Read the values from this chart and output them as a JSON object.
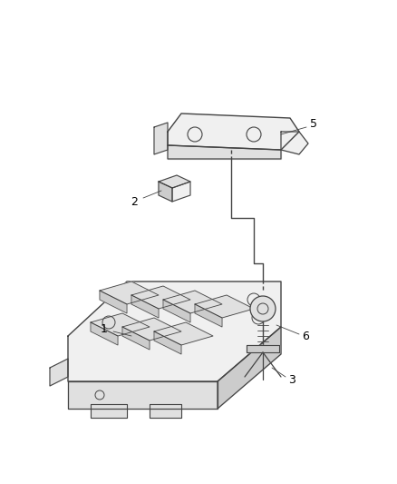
{
  "fig_width": 4.38,
  "fig_height": 5.33,
  "dpi": 100,
  "bg_color": "#ffffff",
  "lc": "#666666",
  "dc": "#444444",
  "fc_light": "#f0f0f0",
  "fc_mid": "#e0e0e0",
  "fc_dark": "#cccccc"
}
